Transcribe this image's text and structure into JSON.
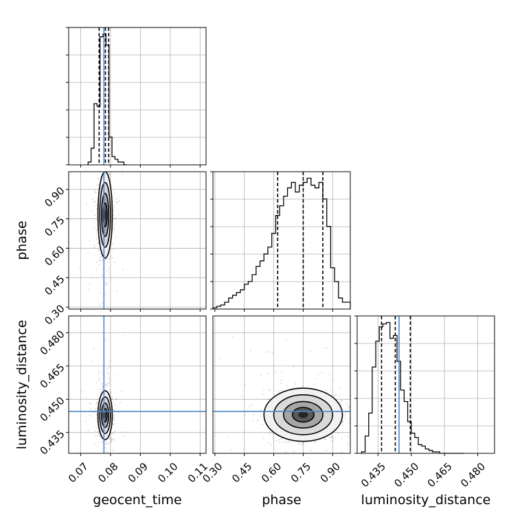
{
  "chart_data": {
    "type": "corner",
    "parameters": [
      {
        "name": "geocent_time",
        "label": "geocent_time",
        "range": [
          0.066,
          0.112
        ],
        "ticks": [
          0.07,
          0.08,
          0.09,
          0.1,
          0.11
        ],
        "tick_labels": [
          "0.07",
          "0.08",
          "0.09",
          "0.10",
          "0.11"
        ],
        "truth": 0.0778,
        "quantiles": [
          0.0762,
          0.0783,
          0.0794
        ]
      },
      {
        "name": "phase",
        "label": "phase",
        "range": [
          0.29,
          0.99
        ],
        "ticks": [
          0.3,
          0.45,
          0.6,
          0.75,
          0.9
        ],
        "tick_labels": [
          "0.30",
          "0.45",
          "0.60",
          "0.75",
          "0.90"
        ],
        "truth": null,
        "quantiles": [
          0.62,
          0.75,
          0.85
        ]
      },
      {
        "name": "luminosity_distance",
        "label": "luminosity_distance",
        "range": [
          0.4256,
          0.4876
        ],
        "ticks": [
          0.435,
          0.45,
          0.465,
          0.48
        ],
        "tick_labels": [
          "0.435",
          "0.450",
          "0.465",
          "0.480"
        ],
        "truth": 0.4445,
        "quantiles": [
          0.4366,
          0.4428,
          0.4496
        ]
      }
    ],
    "histograms": [
      {
        "param": "geocent_time",
        "bin_edges": [
          0.0725,
          0.0735,
          0.0745,
          0.0755,
          0.0765,
          0.0775,
          0.0785,
          0.0795,
          0.0805,
          0.0815,
          0.0825,
          0.0835,
          0.0845,
          0.0855
        ],
        "counts": [
          1,
          6,
          22,
          21,
          46,
          47,
          43,
          10,
          3,
          2,
          1,
          1,
          0
        ]
      },
      {
        "param": "phase",
        "bin_edges": [
          0.29,
          0.31,
          0.33,
          0.35,
          0.37,
          0.39,
          0.41,
          0.43,
          0.45,
          0.47,
          0.49,
          0.51,
          0.53,
          0.55,
          0.57,
          0.59,
          0.61,
          0.63,
          0.65,
          0.67,
          0.69,
          0.71,
          0.73,
          0.75,
          0.77,
          0.79,
          0.81,
          0.83,
          0.85,
          0.87,
          0.89,
          0.91,
          0.93,
          0.95,
          0.97,
          0.99
        ],
        "counts": [
          1,
          2,
          3,
          5,
          8,
          10,
          12,
          14,
          18,
          20,
          25,
          31,
          35,
          40,
          45,
          55,
          68,
          75,
          82,
          88,
          92,
          85,
          90,
          92,
          95,
          90,
          88,
          92,
          80,
          60,
          30,
          20,
          8,
          5,
          5
        ]
      },
      {
        "param": "luminosity_distance",
        "bin_edges": [
          0.4276,
          0.4292,
          0.4308,
          0.4324,
          0.434,
          0.4356,
          0.4372,
          0.4388,
          0.4404,
          0.442,
          0.4436,
          0.4452,
          0.4468,
          0.4484,
          0.45,
          0.4516,
          0.4532,
          0.4548,
          0.4564,
          0.458,
          0.4596,
          0.4612,
          0.4628,
          0.4644,
          0.466,
          0.4676,
          0.4692,
          0.4708,
          0.4724,
          0.474
        ],
        "counts": [
          1,
          12,
          28,
          60,
          78,
          88,
          90,
          91,
          80,
          82,
          64,
          44,
          36,
          22,
          14,
          11,
          6,
          5,
          3,
          2,
          1,
          1,
          0,
          0,
          0,
          0,
          0,
          0,
          0
        ]
      }
    ],
    "joint_distributions": [
      {
        "x": "geocent_time",
        "y": "phase",
        "center": [
          0.0782,
          0.77
        ],
        "spread": [
          0.0012,
          0.11
        ]
      },
      {
        "x": "geocent_time",
        "y": "luminosity_distance",
        "center": [
          0.0782,
          0.4428
        ],
        "spread": [
          0.0012,
          0.0055
        ]
      },
      {
        "x": "phase",
        "y": "luminosity_distance",
        "center": [
          0.75,
          0.443
        ],
        "spread": [
          0.1,
          0.006
        ]
      }
    ],
    "truth_color": "#4a86c5",
    "grid": true
  }
}
